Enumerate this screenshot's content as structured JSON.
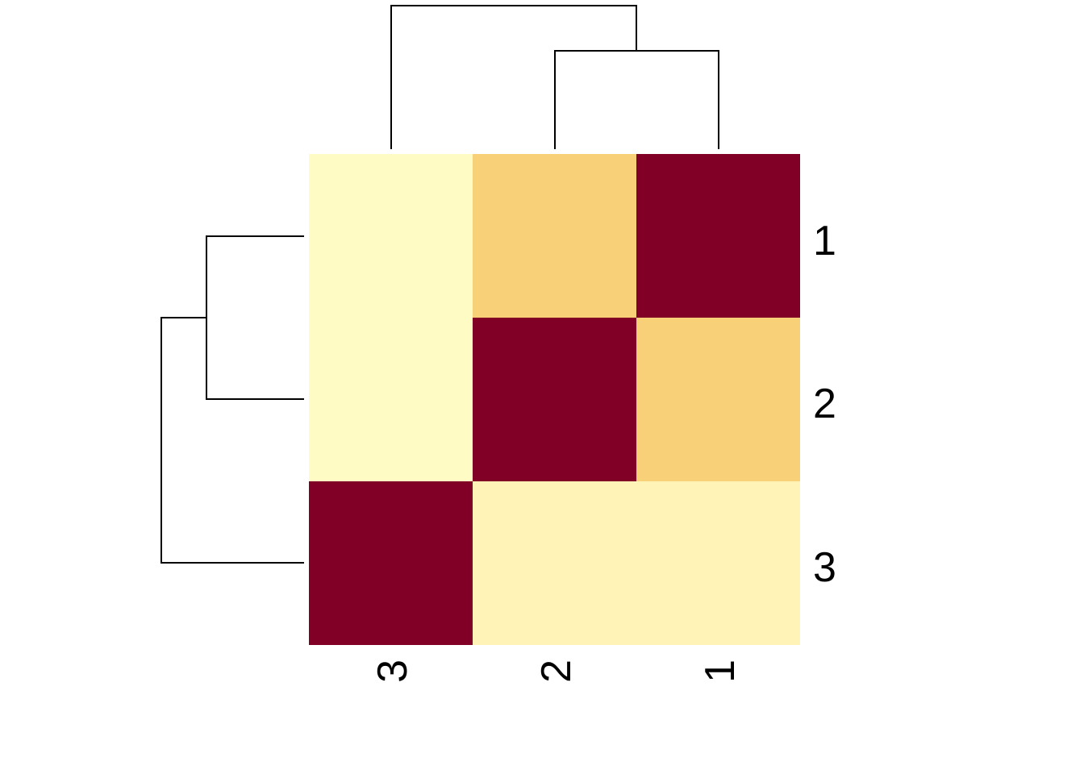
{
  "chart_data": {
    "type": "heatmap",
    "title": "",
    "xlabel": "",
    "ylabel": "",
    "x_categories": [
      "3",
      "2",
      "1"
    ],
    "y_categories": [
      "1",
      "2",
      "3"
    ],
    "values": [
      [
        0.05,
        0.55,
        1.0
      ],
      [
        0.05,
        1.0,
        0.55
      ],
      [
        1.0,
        0.15,
        0.15
      ]
    ],
    "colors": {
      "low": "#FFFFCC",
      "mid_low": "#FFF3B8",
      "mid": "#F7D078",
      "high": "#800026"
    },
    "column_dendrogram": true,
    "row_dendrogram": true,
    "legend": "none",
    "grid": false
  }
}
